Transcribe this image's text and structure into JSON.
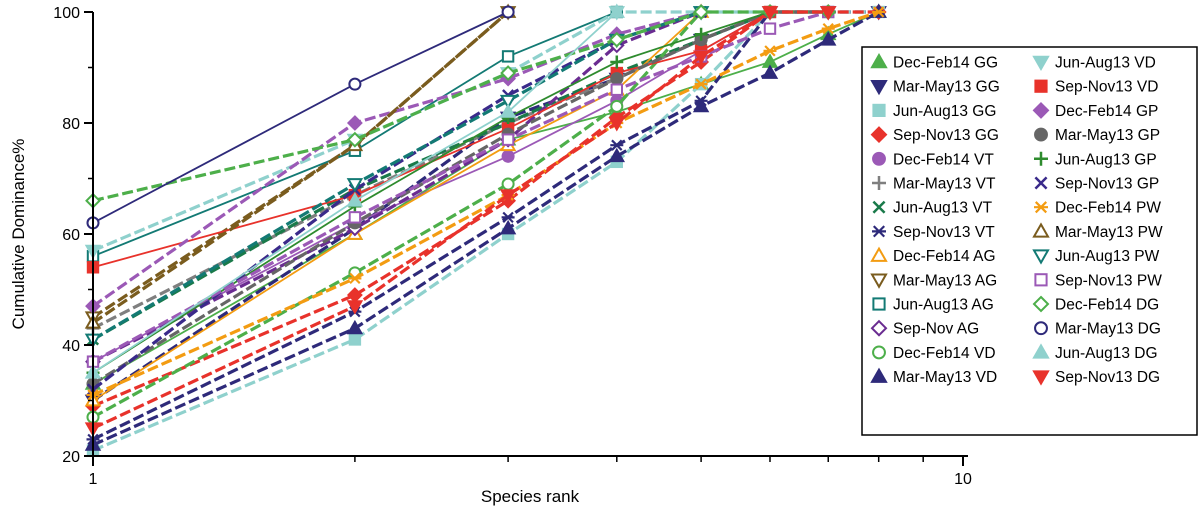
{
  "chart_data": {
    "type": "line",
    "xlabel": "Species rank",
    "ylabel": "Cumulative Dominance%",
    "x_scale": "log",
    "xlim": [
      1,
      10
    ],
    "ylim": [
      20,
      100
    ],
    "x_ticks": [
      1,
      10
    ],
    "y_ticks": [
      20,
      40,
      60,
      80,
      100
    ],
    "grid": false,
    "legend_position": "right",
    "series": [
      {
        "name": "Dec-Feb14 GG",
        "color": "#4daf4a",
        "marker": "triangle-up",
        "filled": true,
        "dashed": false,
        "x": [
          1,
          2,
          3,
          4,
          5,
          6,
          7,
          8
        ],
        "y": [
          33,
          60,
          77,
          82,
          87,
          91,
          96,
          100
        ]
      },
      {
        "name": "Mar-May13 GG",
        "color": "#2e2a7a",
        "marker": "triangle-down",
        "filled": true,
        "dashed": true,
        "x": [
          1,
          2,
          3,
          4,
          5,
          6,
          7,
          8
        ],
        "y": [
          30,
          61,
          81,
          88,
          95,
          100,
          100,
          100
        ]
      },
      {
        "name": "Jun-Aug13 GG",
        "color": "#8fd1cd",
        "marker": "square",
        "filled": true,
        "dashed": true,
        "x": [
          1,
          2,
          3,
          4,
          5,
          6,
          7,
          8
        ],
        "y": [
          21,
          41,
          60,
          73,
          87,
          100,
          100,
          100
        ]
      },
      {
        "name": "Sep-Nov13 GG",
        "color": "#e8322b",
        "marker": "diamond",
        "filled": true,
        "dashed": true,
        "x": [
          1,
          2,
          3,
          4,
          5,
          6,
          7,
          8
        ],
        "y": [
          29,
          49,
          66,
          81,
          91,
          100,
          100,
          100
        ]
      },
      {
        "name": "Dec-Feb14 VT",
        "color": "#9b59b6",
        "marker": "circle",
        "filled": true,
        "dashed": false,
        "x": [
          1,
          2,
          3,
          4,
          5,
          6
        ],
        "y": [
          37,
          62,
          74,
          84,
          93,
          100
        ]
      },
      {
        "name": "Mar-May13 VT",
        "color": "#7f7f7f",
        "marker": "plus",
        "filled": false,
        "dashed": true,
        "x": [
          1,
          2,
          3,
          4,
          5,
          6,
          7
        ],
        "y": [
          43,
          67,
          80,
          88,
          95,
          100,
          100
        ]
      },
      {
        "name": "Jun-Aug13 VT",
        "color": "#1a7a4a",
        "marker": "x",
        "filled": false,
        "dashed": true,
        "x": [
          1,
          2,
          3,
          4,
          5,
          6
        ],
        "y": [
          41,
          68,
          80,
          89,
          95,
          100
        ]
      },
      {
        "name": "Sep-Nov13 VT",
        "color": "#2e2a7a",
        "marker": "asterisk",
        "filled": false,
        "dashed": true,
        "x": [
          1,
          2,
          3,
          4,
          5,
          6
        ],
        "y": [
          23,
          46,
          63,
          76,
          84,
          100
        ]
      },
      {
        "name": "Dec-Feb14 AG",
        "color": "#f39c12",
        "marker": "triangle-up",
        "filled": false,
        "dashed": false,
        "x": [
          1,
          2,
          3,
          4,
          5
        ],
        "y": [
          30,
          60,
          76,
          86,
          100
        ]
      },
      {
        "name": "Mar-May13 AG",
        "color": "#7a5c1e",
        "marker": "triangle-down",
        "filled": false,
        "dashed": true,
        "x": [
          1,
          2,
          3
        ],
        "y": [
          45,
          76,
          100
        ]
      },
      {
        "name": "Jun-Aug13 AG",
        "color": "#137a74",
        "marker": "square",
        "filled": false,
        "dashed": false,
        "x": [
          1,
          2,
          3,
          4
        ],
        "y": [
          56,
          75,
          92,
          100
        ]
      },
      {
        "name": "Sep-Nov AG",
        "color": "#6a2c91",
        "marker": "diamond",
        "filled": false,
        "dashed": true,
        "x": [
          1,
          2,
          3,
          4,
          5
        ],
        "y": [
          37,
          61,
          77,
          94,
          100
        ]
      },
      {
        "name": "Dec-Feb14 VD",
        "color": "#4daf4a",
        "marker": "circle",
        "filled": false,
        "dashed": true,
        "x": [
          1,
          2,
          3,
          4,
          5
        ],
        "y": [
          27,
          53,
          69,
          83,
          100
        ]
      },
      {
        "name": "Mar-May13 VD",
        "color": "#2e2a7a",
        "marker": "triangle-up",
        "filled": true,
        "dashed": true,
        "x": [
          1,
          2,
          3,
          4,
          5,
          6,
          7,
          8
        ],
        "y": [
          22,
          43,
          61,
          74,
          83,
          89,
          95,
          100
        ]
      },
      {
        "name": "Jun-Aug13 VD",
        "color": "#8fd1cd",
        "marker": "triangle-down",
        "filled": true,
        "dashed": true,
        "x": [
          1,
          2,
          3,
          4,
          5,
          6
        ],
        "y": [
          57,
          77,
          89,
          100,
          100,
          100
        ]
      },
      {
        "name": "Sep-Nov13 VD",
        "color": "#e8322b",
        "marker": "square",
        "filled": true,
        "dashed": false,
        "x": [
          1,
          2,
          3,
          4,
          5,
          6
        ],
        "y": [
          54,
          67,
          79,
          89,
          93,
          100
        ]
      },
      {
        "name": "Dec-Feb14 GP",
        "color": "#9b59b6",
        "marker": "diamond",
        "filled": true,
        "dashed": true,
        "x": [
          1,
          2,
          3,
          4,
          5
        ],
        "y": [
          47,
          80,
          88,
          96,
          100
        ]
      },
      {
        "name": "Mar-May13 GP",
        "color": "#666666",
        "marker": "circle",
        "filled": true,
        "dashed": true,
        "x": [
          1,
          2,
          3,
          4,
          5,
          6,
          7
        ],
        "y": [
          33,
          62,
          78,
          88,
          95,
          100,
          100
        ]
      },
      {
        "name": "Jun-Aug13 GP",
        "color": "#2e8b2e",
        "marker": "plus",
        "filled": false,
        "dashed": false,
        "x": [
          1,
          2,
          3,
          4,
          5,
          6
        ],
        "y": [
          35,
          65,
          81,
          91,
          96,
          100
        ]
      },
      {
        "name": "Sep-Nov13 GP",
        "color": "#3a2a8a",
        "marker": "x",
        "filled": false,
        "dashed": true,
        "x": [
          1,
          2,
          3,
          4,
          5
        ],
        "y": [
          32,
          68,
          85,
          95,
          100
        ]
      },
      {
        "name": "Dec-Feb14 PW",
        "color": "#f39c12",
        "marker": "asterisk",
        "filled": false,
        "dashed": true,
        "x": [
          1,
          2,
          3,
          4,
          5,
          6,
          7,
          8
        ],
        "y": [
          31,
          52,
          67,
          80,
          87,
          93,
          97,
          100
        ]
      },
      {
        "name": "Mar-May13 PW",
        "color": "#7a5c1e",
        "marker": "triangle-up",
        "filled": false,
        "dashed": true,
        "x": [
          1,
          2,
          3
        ],
        "y": [
          44,
          76,
          100
        ]
      },
      {
        "name": "Jun-Aug13 PW",
        "color": "#137a74",
        "marker": "triangle-down",
        "filled": false,
        "dashed": true,
        "x": [
          1,
          2,
          3,
          4,
          5
        ],
        "y": [
          41,
          69,
          84,
          95,
          100
        ]
      },
      {
        "name": "Sep-Nov13 PW",
        "color": "#9b59b6",
        "marker": "square",
        "filled": false,
        "dashed": true,
        "x": [
          1,
          2,
          3,
          4,
          5,
          6,
          7
        ],
        "y": [
          37,
          63,
          77,
          86,
          92,
          97,
          100
        ]
      },
      {
        "name": "Dec-Feb14 DG",
        "color": "#4daf4a",
        "marker": "diamond",
        "filled": false,
        "dashed": true,
        "x": [
          1,
          2,
          3,
          4,
          5,
          6,
          7
        ],
        "y": [
          66,
          77,
          89,
          95,
          100,
          100,
          100
        ]
      },
      {
        "name": "Mar-May13 DG",
        "color": "#2e2a7a",
        "marker": "circle",
        "filled": false,
        "dashed": false,
        "x": [
          1,
          2,
          3
        ],
        "y": [
          62,
          87,
          100
        ]
      },
      {
        "name": "Jun-Aug13 DG",
        "color": "#8fd1cd",
        "marker": "triangle-up",
        "filled": true,
        "dashed": false,
        "x": [
          1,
          2,
          3,
          4
        ],
        "y": [
          35,
          66,
          82,
          100
        ]
      },
      {
        "name": "Sep-Nov13 DG",
        "color": "#e8322b",
        "marker": "triangle-down",
        "filled": true,
        "dashed": true,
        "x": [
          1,
          2,
          3,
          4,
          5,
          6,
          7
        ],
        "y": [
          25,
          47,
          67,
          80,
          92,
          100,
          100
        ]
      }
    ]
  }
}
